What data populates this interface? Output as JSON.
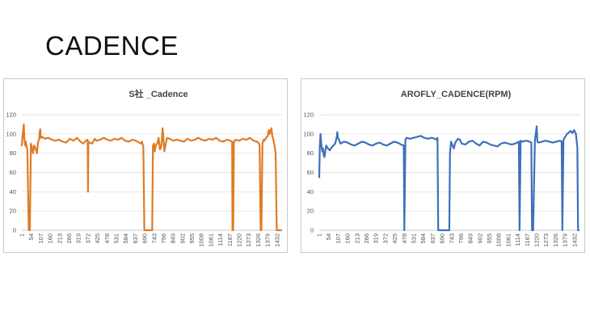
{
  "slide": {
    "title": "CADENCE"
  },
  "chart_data": [
    {
      "type": "line",
      "title": "S社 _Cadence",
      "xlabel": "",
      "ylabel": "",
      "ylim": [
        0,
        120
      ],
      "yticks": [
        0,
        20,
        40,
        60,
        80,
        100,
        120
      ],
      "xlim": [
        1,
        1460
      ],
      "xticks": [
        "1",
        "54",
        "107",
        "160",
        "213",
        "266",
        "319",
        "372",
        "425",
        "478",
        "531",
        "584",
        "637",
        "690",
        "743",
        "796",
        "849",
        "902",
        "955",
        "1008",
        "1061",
        "1114",
        "1167",
        "1220",
        "1273",
        "1326",
        "1379",
        "1432"
      ],
      "grid": true,
      "colors": {
        "line": "#e07b24",
        "grid": "#d9d9d9",
        "axis": "#bfbfbf"
      },
      "series": [
        {
          "name": "",
          "x": [
            1,
            5,
            12,
            15,
            20,
            24,
            28,
            32,
            40,
            46,
            52,
            58,
            64,
            70,
            78,
            86,
            92,
            98,
            100,
            104,
            108,
            115,
            130,
            150,
            170,
            190,
            210,
            230,
            250,
            270,
            290,
            310,
            330,
            345,
            360,
            370,
            372,
            374,
            380,
            395,
            410,
            420,
            440,
            460,
            480,
            500,
            520,
            540,
            560,
            580,
            600,
            620,
            640,
            660,
            670,
            675,
            678,
            682,
            688,
            700,
            708,
            714,
            720,
            726,
            732,
            736,
            742,
            746,
            752,
            760,
            768,
            775,
            780,
            786,
            790,
            794,
            800,
            808,
            815,
            830,
            850,
            870,
            890,
            910,
            930,
            950,
            970,
            990,
            1010,
            1030,
            1050,
            1070,
            1090,
            1110,
            1130,
            1150,
            1170,
            1180,
            1182,
            1186,
            1190,
            1200,
            1220,
            1240,
            1260,
            1280,
            1300,
            1320,
            1330,
            1334,
            1340,
            1344,
            1350,
            1356,
            1362,
            1370,
            1380,
            1385,
            1390,
            1400,
            1405,
            1410,
            1418,
            1424,
            1430,
            1435,
            1440,
            1444,
            1448,
            1452,
            1456
          ],
          "values": [
            88,
            98,
            110,
            95,
            88,
            92,
            86,
            84,
            0,
            0,
            90,
            86,
            80,
            88,
            85,
            80,
            92,
            94,
            100,
            105,
            96,
            97,
            95,
            96,
            94,
            93,
            94,
            92,
            91,
            95,
            93,
            96,
            92,
            90,
            93,
            94,
            40,
            92,
            91,
            90,
            95,
            93,
            94,
            96,
            94,
            93,
            95,
            94,
            96,
            93,
            92,
            94,
            93,
            91,
            90,
            92,
            89,
            88,
            0,
            0,
            0,
            0,
            0,
            0,
            0,
            88,
            90,
            82,
            88,
            90,
            96,
            84,
            85,
            93,
            106,
            98,
            82,
            90,
            96,
            95,
            93,
            94,
            93,
            92,
            95,
            93,
            94,
            96,
            94,
            93,
            95,
            94,
            96,
            93,
            92,
            94,
            93,
            92,
            0,
            0,
            92,
            94,
            93,
            95,
            94,
            96,
            93,
            92,
            90,
            88,
            0,
            0,
            90,
            94,
            93,
            96,
            98,
            104,
            100,
            106,
            98,
            95,
            88,
            80,
            0,
            0,
            0,
            0,
            0,
            0,
            0
          ]
        }
      ]
    },
    {
      "type": "line",
      "title": "AROFLY_CADENCE(RPM)",
      "xlabel": "",
      "ylabel": "",
      "ylim": [
        0,
        120
      ],
      "yticks": [
        0,
        20,
        40,
        60,
        80,
        100,
        120
      ],
      "xlim": [
        1,
        1460
      ],
      "xticks": [
        "1",
        "54",
        "107",
        "160",
        "213",
        "266",
        "319",
        "372",
        "425",
        "478",
        "531",
        "584",
        "637",
        "690",
        "743",
        "796",
        "849",
        "902",
        "955",
        "1008",
        "1061",
        "1114",
        "1167",
        "1220",
        "1273",
        "1326",
        "1379",
        "1432"
      ],
      "grid": true,
      "colors": {
        "line": "#3f6fba",
        "grid": "#d9d9d9",
        "axis": "#bfbfbf"
      },
      "series": [
        {
          "name": "",
          "x": [
            1,
            4,
            8,
            12,
            18,
            22,
            26,
            30,
            40,
            50,
            60,
            70,
            80,
            90,
            96,
            100,
            102,
            106,
            112,
            120,
            140,
            160,
            180,
            200,
            220,
            240,
            260,
            280,
            300,
            320,
            340,
            360,
            380,
            400,
            420,
            440,
            460,
            475,
            478,
            484,
            490,
            510,
            530,
            550,
            570,
            590,
            610,
            630,
            650,
            660,
            664,
            668,
            672,
            680,
            690,
            700,
            710,
            720,
            730,
            734,
            740,
            748,
            756,
            762,
            770,
            780,
            790,
            800,
            820,
            840,
            860,
            880,
            900,
            920,
            940,
            960,
            980,
            1000,
            1020,
            1040,
            1060,
            1080,
            1100,
            1120,
            1124,
            1130,
            1140,
            1160,
            1180,
            1190,
            1194,
            1200,
            1210,
            1220,
            1224,
            1230,
            1250,
            1270,
            1290,
            1310,
            1330,
            1350,
            1360,
            1364,
            1370,
            1390,
            1410,
            1420,
            1430,
            1440,
            1448,
            1452,
            1456
          ],
          "values": [
            55,
            85,
            100,
            90,
            82,
            85,
            78,
            76,
            88,
            85,
            83,
            86,
            88,
            90,
            94,
            98,
            102,
            96,
            94,
            90,
            92,
            91,
            89,
            88,
            90,
            92,
            91,
            89,
            88,
            90,
            91,
            89,
            88,
            90,
            92,
            91,
            89,
            88,
            0,
            94,
            96,
            95,
            96,
            97,
            98,
            96,
            95,
            96,
            95,
            94,
            96,
            0,
            0,
            0,
            0,
            0,
            0,
            0,
            0,
            80,
            92,
            88,
            85,
            90,
            93,
            95,
            94,
            90,
            89,
            92,
            93,
            90,
            88,
            92,
            91,
            89,
            88,
            87,
            90,
            91,
            90,
            89,
            90,
            92,
            0,
            93,
            92,
            93,
            92,
            91,
            0,
            0,
            93,
            108,
            92,
            91,
            92,
            93,
            92,
            91,
            92,
            93,
            92,
            0,
            94,
            100,
            103,
            101,
            104,
            100,
            86,
            0,
            0
          ]
        }
      ]
    }
  ]
}
